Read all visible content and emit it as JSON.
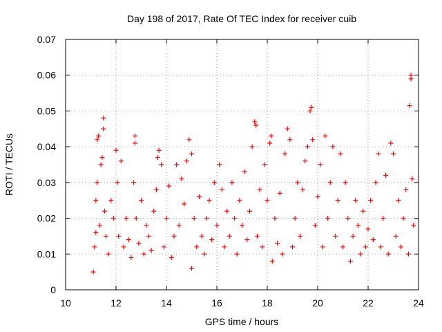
{
  "chart_data": {
    "type": "scatter",
    "title": "Day 198 of 2017, Rate Of TEC Index for receiver cuib",
    "xlabel": "GPS time / hours",
    "ylabel": "ROTI / TECUs",
    "xlim": [
      10,
      24
    ],
    "ylim": [
      0,
      0.07
    ],
    "x_ticks": [
      10,
      12,
      14,
      16,
      18,
      20,
      22,
      24
    ],
    "y_ticks": [
      0,
      0.01,
      0.02,
      0.03,
      0.04,
      0.05,
      0.06,
      0.07
    ],
    "x_tick_labels": [
      "10",
      "12",
      "14",
      "16",
      "18",
      "20",
      "22",
      "24"
    ],
    "y_tick_labels": [
      "0",
      "0.01",
      "0.02",
      "0.03",
      "0.04",
      "0.05",
      "0.06",
      "0.07"
    ],
    "grid": true,
    "marker": "plus",
    "series": [
      {
        "name": "ROTI",
        "color": "#ff0000",
        "points": [
          [
            11.1,
            0.005
          ],
          [
            11.15,
            0.012
          ],
          [
            11.2,
            0.016
          ],
          [
            11.2,
            0.025
          ],
          [
            11.25,
            0.03
          ],
          [
            11.25,
            0.042
          ],
          [
            11.3,
            0.043
          ],
          [
            11.35,
            0.018
          ],
          [
            11.4,
            0.035
          ],
          [
            11.45,
            0.037
          ],
          [
            11.5,
            0.045
          ],
          [
            11.5,
            0.048
          ],
          [
            11.55,
            0.022
          ],
          [
            11.6,
            0.015
          ],
          [
            11.7,
            0.01
          ],
          [
            11.8,
            0.025
          ],
          [
            11.9,
            0.02
          ],
          [
            12.0,
            0.039
          ],
          [
            12.05,
            0.03
          ],
          [
            12.1,
            0.015
          ],
          [
            12.2,
            0.036
          ],
          [
            12.3,
            0.012
          ],
          [
            12.4,
            0.02
          ],
          [
            12.5,
            0.014
          ],
          [
            12.6,
            0.009
          ],
          [
            12.7,
            0.03
          ],
          [
            12.75,
            0.043
          ],
          [
            12.75,
            0.041
          ],
          [
            12.8,
            0.02
          ],
          [
            12.9,
            0.013
          ],
          [
            13.0,
            0.025
          ],
          [
            13.1,
            0.01
          ],
          [
            13.2,
            0.018
          ],
          [
            13.3,
            0.015
          ],
          [
            13.4,
            0.011
          ],
          [
            13.5,
            0.022
          ],
          [
            13.6,
            0.028
          ],
          [
            13.65,
            0.037
          ],
          [
            13.7,
            0.039
          ],
          [
            13.8,
            0.035
          ],
          [
            13.9,
            0.012
          ],
          [
            14.0,
            0.02
          ],
          [
            14.1,
            0.029
          ],
          [
            14.2,
            0.009
          ],
          [
            14.3,
            0.015
          ],
          [
            14.4,
            0.035
          ],
          [
            14.5,
            0.018
          ],
          [
            14.6,
            0.031
          ],
          [
            14.7,
            0.024
          ],
          [
            14.8,
            0.036
          ],
          [
            14.9,
            0.042
          ],
          [
            15.0,
            0.038
          ],
          [
            15.0,
            0.006
          ],
          [
            15.1,
            0.02
          ],
          [
            15.2,
            0.012
          ],
          [
            15.3,
            0.026
          ],
          [
            15.4,
            0.015
          ],
          [
            15.5,
            0.01
          ],
          [
            15.6,
            0.02
          ],
          [
            15.7,
            0.025
          ],
          [
            15.8,
            0.014
          ],
          [
            15.9,
            0.03
          ],
          [
            16.0,
            0.018
          ],
          [
            16.1,
            0.035
          ],
          [
            16.2,
            0.028
          ],
          [
            16.3,
            0.012
          ],
          [
            16.4,
            0.022
          ],
          [
            16.5,
            0.015
          ],
          [
            16.6,
            0.03
          ],
          [
            16.7,
            0.02
          ],
          [
            16.8,
            0.01
          ],
          [
            16.9,
            0.025
          ],
          [
            17.0,
            0.018
          ],
          [
            17.1,
            0.033
          ],
          [
            17.2,
            0.014
          ],
          [
            17.3,
            0.022
          ],
          [
            17.4,
            0.04
          ],
          [
            17.5,
            0.047
          ],
          [
            17.55,
            0.046
          ],
          [
            17.6,
            0.015
          ],
          [
            17.7,
            0.028
          ],
          [
            17.8,
            0.012
          ],
          [
            17.9,
            0.035
          ],
          [
            18.0,
            0.025
          ],
          [
            18.1,
            0.041
          ],
          [
            18.15,
            0.043
          ],
          [
            18.2,
            0.008
          ],
          [
            18.3,
            0.02
          ],
          [
            18.4,
            0.013
          ],
          [
            18.5,
            0.027
          ],
          [
            18.6,
            0.01
          ],
          [
            18.7,
            0.038
          ],
          [
            18.8,
            0.045
          ],
          [
            18.9,
            0.042
          ],
          [
            19.0,
            0.012
          ],
          [
            19.1,
            0.02
          ],
          [
            19.2,
            0.03
          ],
          [
            19.3,
            0.015
          ],
          [
            19.4,
            0.028
          ],
          [
            19.5,
            0.036
          ],
          [
            19.6,
            0.04
          ],
          [
            19.7,
            0.05
          ],
          [
            19.75,
            0.051
          ],
          [
            19.8,
            0.042
          ],
          [
            19.9,
            0.018
          ],
          [
            20.0,
            0.026
          ],
          [
            20.1,
            0.035
          ],
          [
            20.2,
            0.012
          ],
          [
            20.3,
            0.043
          ],
          [
            20.4,
            0.02
          ],
          [
            20.5,
            0.03
          ],
          [
            20.6,
            0.04
          ],
          [
            20.7,
            0.015
          ],
          [
            20.8,
            0.025
          ],
          [
            20.9,
            0.038
          ],
          [
            21.0,
            0.012
          ],
          [
            21.1,
            0.03
          ],
          [
            21.2,
            0.02
          ],
          [
            21.3,
            0.008
          ],
          [
            21.4,
            0.015
          ],
          [
            21.5,
            0.025
          ],
          [
            21.6,
            0.018
          ],
          [
            21.7,
            0.01
          ],
          [
            21.8,
            0.022
          ],
          [
            21.9,
            0.012
          ],
          [
            22.0,
            0.017
          ],
          [
            22.1,
            0.025
          ],
          [
            22.2,
            0.014
          ],
          [
            22.3,
            0.03
          ],
          [
            22.4,
            0.038
          ],
          [
            22.5,
            0.012
          ],
          [
            22.6,
            0.02
          ],
          [
            22.7,
            0.032
          ],
          [
            22.8,
            0.01
          ],
          [
            22.9,
            0.041
          ],
          [
            23.0,
            0.038
          ],
          [
            23.1,
            0.015
          ],
          [
            23.2,
            0.025
          ],
          [
            23.3,
            0.012
          ],
          [
            23.4,
            0.02
          ],
          [
            23.5,
            0.028
          ],
          [
            23.6,
            0.01
          ],
          [
            23.65,
            0.0515
          ],
          [
            23.7,
            0.059
          ],
          [
            23.7,
            0.06
          ],
          [
            23.75,
            0.031
          ],
          [
            23.8,
            0.018
          ]
        ]
      }
    ]
  }
}
